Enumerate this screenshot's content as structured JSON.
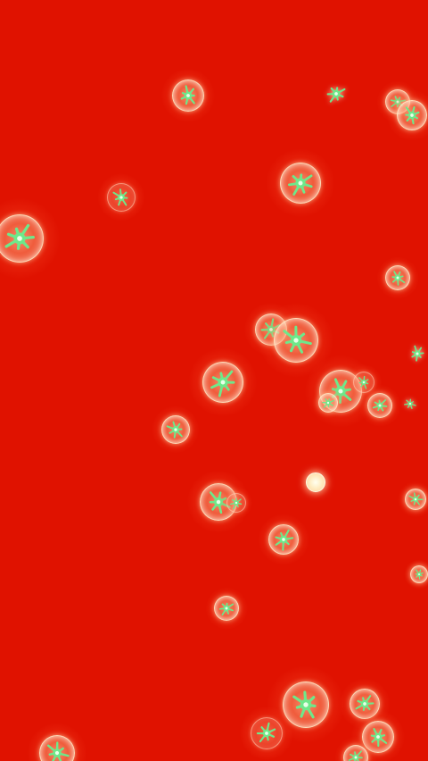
{
  "scene": {
    "background_color": "#e01200",
    "bubble_shell_color": "#fff0d0",
    "sparkle_color": "#6ee88a",
    "bubble_count": 38,
    "bubble_icon": "glowing-bubble-icon",
    "sparkle_icon": "green-sparkle-icon"
  }
}
